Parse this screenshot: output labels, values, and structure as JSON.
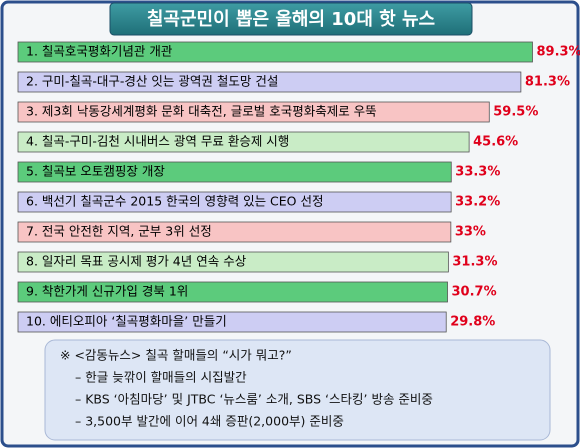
{
  "chart_data": {
    "type": "bar",
    "orientation": "horizontal",
    "title": "칠곡군민이 뽑은 올해의 10대 핫 뉴스",
    "categories": [
      "1. 칠곡호국평화기념관 개관",
      "2. 구미-칠곡-대구-경산 잇는 광역권 철도망 건설",
      "3. 제3회 낙동강세계평화 문화 대축전, 글로벌 호국평화축제로 우뚝",
      "4. 칠곡-구미-김천 시내버스 광역 무료 환승제 시행",
      "5. 칠곡보 오토캠핑장 개장",
      "6. 백선기 칠곡군수 2015 한국의 영향력 있는 CEO 선정",
      "7. 전국 안전한 지역, 군부 3위 선정",
      "8. 일자리 목표 공시제 평가 4년 연속 수상",
      "9. 착한가게 신규가입 경북 1위",
      "10. 에티오피아 ‘칠곡평화마을’ 만들기"
    ],
    "values": [
      89.3,
      81.3,
      59.5,
      45.6,
      33.3,
      33.2,
      33,
      31.3,
      30.7,
      29.8
    ],
    "value_labels": [
      "89.3%",
      "81.3%",
      "59.5%",
      "45.6%",
      "33.3%",
      "33.2%",
      "33%",
      "31.3%",
      "30.7%",
      "29.8%"
    ],
    "colors": [
      "#5ccb7c",
      "#cdcdf3",
      "#f8c4c4",
      "#c9ecc6",
      "#5ccb7c",
      "#cdcdf3",
      "#f8c4c4",
      "#c9ecc6",
      "#5ccb7c",
      "#cdcdf3"
    ]
  },
  "notes": {
    "heading": "※ <감동뉴스> 칠곡 할매들의 “시가 뭐고?”",
    "items": [
      "– 한글 늦깎이 할매들의 시집발간",
      "– KBS ‘아침마당’ 및 JTBC ‘뉴스룸’ 소개, SBS ‘스타킹’ 방송 준비중",
      "– 3,500부 발간에 이어 4쇄 증판(2,000부) 준비중"
    ]
  }
}
